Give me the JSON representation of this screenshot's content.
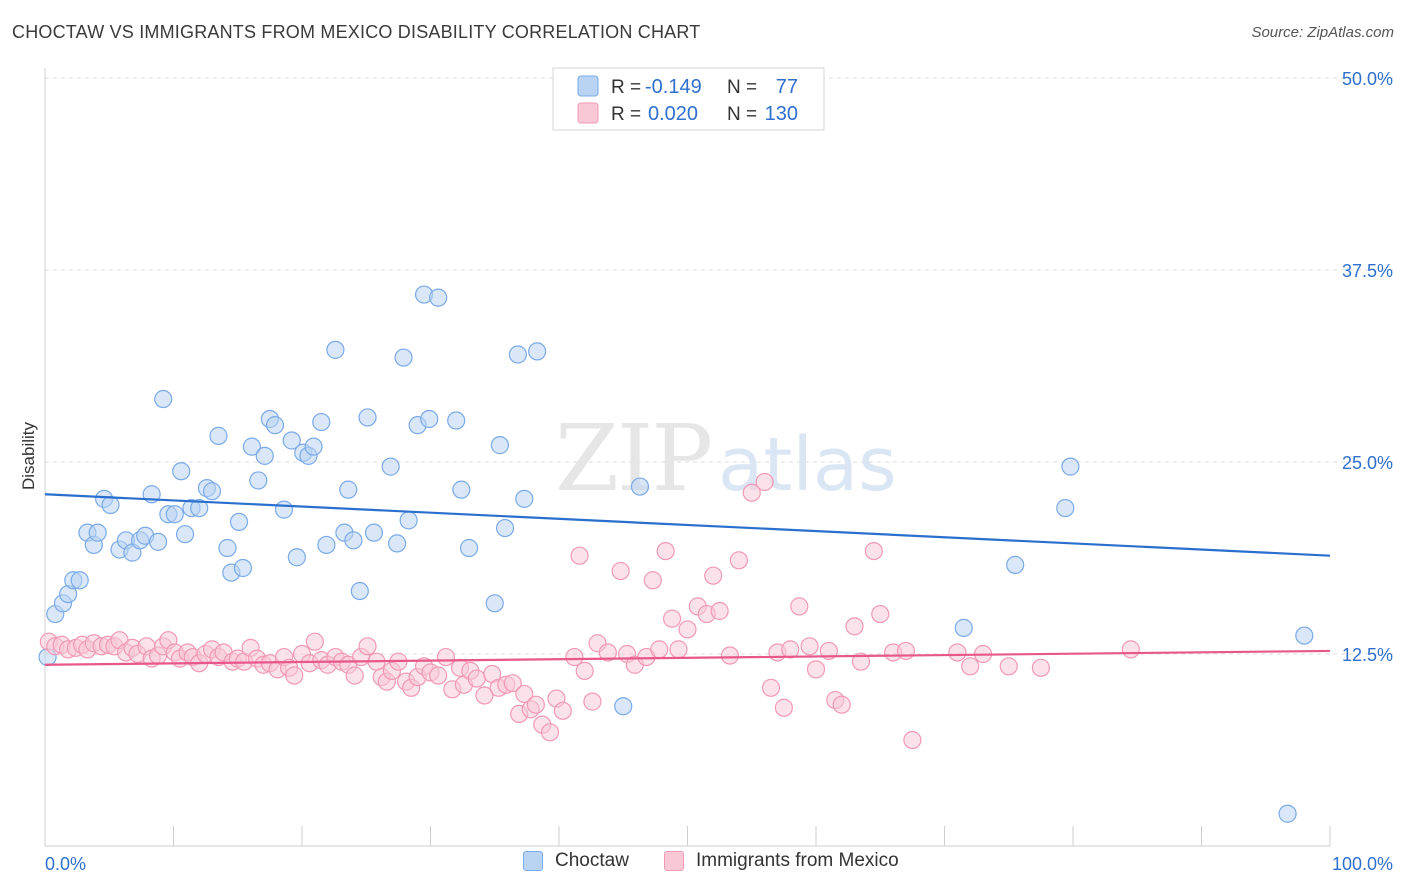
{
  "title": "CHOCTAW VS IMMIGRANTS FROM MEXICO DISABILITY CORRELATION CHART",
  "source": "Source: ZipAtlas.com",
  "watermark": {
    "zip": "ZIP",
    "atlas": "atlas"
  },
  "colors": {
    "blue": "#7aaae8",
    "blue_fill": "#b9d3f3",
    "blue_line": "#2b6fce",
    "pink": "#f199b5",
    "pink_fill": "#f8c8d7",
    "pink_line": "#e8578a",
    "value_text": "#2f6fce",
    "grid": "#dcdcdc"
  },
  "stats_legend": {
    "rows": [
      {
        "r_label": "R =",
        "r_value": "-0.149",
        "n_label": "N =",
        "n_value": "77",
        "series": "Choctaw"
      },
      {
        "r_label": "R =",
        "r_value": "0.020",
        "n_label": "N =",
        "n_value": "130",
        "series": "Immigrants from Mexico"
      }
    ]
  },
  "chart_data": {
    "type": "scatter",
    "title": "CHOCTAW VS IMMIGRANTS FROM MEXICO DISABILITY CORRELATION CHART",
    "xlabel": "",
    "ylabel": "Disability",
    "xlim": [
      0,
      100
    ],
    "ylim": [
      0,
      50
    ],
    "x_tick_labels": [
      {
        "value": 0,
        "label": "0.0%"
      },
      {
        "value": 100,
        "label": "100.0%"
      }
    ],
    "y_tick_labels": [
      {
        "value": 12.5,
        "label": "12.5%"
      },
      {
        "value": 25.0,
        "label": "25.0%"
      },
      {
        "value": 37.5,
        "label": "37.5%"
      },
      {
        "value": 50.0,
        "label": "50.0%"
      }
    ],
    "grid": true,
    "legend": "bottom-center",
    "series": [
      {
        "name": "Choctaw",
        "color": "#7aaae8",
        "trend": {
          "x": [
            0,
            100
          ],
          "y": [
            22.9,
            18.9
          ]
        },
        "points": [
          [
            0.2,
            12.3
          ],
          [
            0.8,
            15.1
          ],
          [
            1.4,
            15.8
          ],
          [
            1.8,
            16.4
          ],
          [
            2.2,
            17.3
          ],
          [
            2.7,
            17.3
          ],
          [
            3.3,
            20.4
          ],
          [
            3.8,
            19.6
          ],
          [
            4.1,
            20.4
          ],
          [
            4.6,
            22.6
          ],
          [
            5.1,
            22.2
          ],
          [
            5.8,
            19.3
          ],
          [
            6.3,
            19.9
          ],
          [
            6.8,
            19.1
          ],
          [
            7.4,
            19.9
          ],
          [
            7.8,
            20.2
          ],
          [
            8.3,
            22.9
          ],
          [
            8.8,
            19.8
          ],
          [
            9.2,
            29.1
          ],
          [
            9.6,
            21.6
          ],
          [
            10.1,
            21.6
          ],
          [
            10.6,
            24.4
          ],
          [
            10.9,
            20.3
          ],
          [
            11.4,
            22.0
          ],
          [
            12.0,
            22.0
          ],
          [
            12.6,
            23.3
          ],
          [
            13.0,
            23.1
          ],
          [
            13.5,
            26.7
          ],
          [
            14.2,
            19.4
          ],
          [
            14.5,
            17.8
          ],
          [
            15.1,
            21.1
          ],
          [
            15.4,
            18.1
          ],
          [
            16.1,
            26.0
          ],
          [
            16.6,
            23.8
          ],
          [
            17.1,
            25.4
          ],
          [
            17.5,
            27.8
          ],
          [
            17.9,
            27.4
          ],
          [
            18.6,
            21.9
          ],
          [
            19.2,
            26.4
          ],
          [
            19.6,
            18.8
          ],
          [
            20.1,
            25.6
          ],
          [
            20.5,
            25.4
          ],
          [
            20.9,
            26.0
          ],
          [
            21.5,
            27.6
          ],
          [
            21.9,
            19.6
          ],
          [
            22.6,
            32.3
          ],
          [
            23.3,
            20.4
          ],
          [
            23.6,
            23.2
          ],
          [
            24.0,
            19.9
          ],
          [
            24.5,
            16.6
          ],
          [
            25.1,
            27.9
          ],
          [
            25.6,
            20.4
          ],
          [
            26.9,
            24.7
          ],
          [
            27.4,
            19.7
          ],
          [
            27.9,
            31.8
          ],
          [
            28.3,
            21.2
          ],
          [
            29.0,
            27.4
          ],
          [
            29.5,
            35.9
          ],
          [
            29.9,
            27.8
          ],
          [
            30.6,
            35.7
          ],
          [
            32.0,
            27.7
          ],
          [
            32.4,
            23.2
          ],
          [
            33.0,
            19.4
          ],
          [
            35.0,
            15.8
          ],
          [
            35.4,
            26.1
          ],
          [
            35.8,
            20.7
          ],
          [
            36.8,
            32.0
          ],
          [
            37.3,
            22.6
          ],
          [
            38.3,
            32.2
          ],
          [
            45.0,
            9.1
          ],
          [
            46.3,
            23.4
          ],
          [
            71.5,
            14.2
          ],
          [
            75.5,
            18.3
          ],
          [
            79.4,
            22.0
          ],
          [
            79.8,
            24.7
          ],
          [
            96.7,
            2.1
          ],
          [
            98.0,
            13.7
          ]
        ]
      },
      {
        "name": "Immigrants from Mexico",
        "color": "#f199b5",
        "trend": {
          "x": [
            0,
            100
          ],
          "y": [
            11.8,
            12.7
          ]
        },
        "points": [
          [
            0.3,
            13.3
          ],
          [
            0.8,
            13.0
          ],
          [
            1.3,
            13.1
          ],
          [
            1.8,
            12.8
          ],
          [
            2.4,
            12.9
          ],
          [
            2.9,
            13.1
          ],
          [
            3.3,
            12.8
          ],
          [
            3.8,
            13.2
          ],
          [
            4.4,
            13.0
          ],
          [
            4.9,
            13.1
          ],
          [
            5.4,
            13.0
          ],
          [
            5.8,
            13.4
          ],
          [
            6.3,
            12.6
          ],
          [
            6.8,
            12.9
          ],
          [
            7.2,
            12.5
          ],
          [
            7.9,
            13.0
          ],
          [
            8.3,
            12.2
          ],
          [
            8.8,
            12.4
          ],
          [
            9.2,
            13.0
          ],
          [
            9.6,
            13.4
          ],
          [
            10.1,
            12.6
          ],
          [
            10.5,
            12.2
          ],
          [
            11.1,
            12.6
          ],
          [
            11.5,
            12.3
          ],
          [
            12.0,
            11.9
          ],
          [
            12.5,
            12.5
          ],
          [
            13.0,
            12.8
          ],
          [
            13.5,
            12.3
          ],
          [
            13.9,
            12.6
          ],
          [
            14.6,
            12.0
          ],
          [
            15.0,
            12.2
          ],
          [
            15.5,
            12.0
          ],
          [
            16.0,
            12.9
          ],
          [
            16.5,
            12.2
          ],
          [
            17.0,
            11.8
          ],
          [
            17.5,
            11.9
          ],
          [
            18.1,
            11.5
          ],
          [
            18.6,
            12.3
          ],
          [
            19.0,
            11.6
          ],
          [
            19.4,
            11.1
          ],
          [
            20.0,
            12.5
          ],
          [
            20.6,
            11.9
          ],
          [
            21.0,
            13.3
          ],
          [
            21.5,
            12.1
          ],
          [
            22.0,
            11.8
          ],
          [
            22.6,
            12.3
          ],
          [
            23.1,
            12.0
          ],
          [
            23.6,
            11.8
          ],
          [
            24.1,
            11.1
          ],
          [
            24.6,
            12.3
          ],
          [
            25.1,
            13.0
          ],
          [
            25.8,
            12.0
          ],
          [
            26.2,
            11.0
          ],
          [
            26.6,
            10.7
          ],
          [
            27.0,
            11.4
          ],
          [
            27.5,
            12.0
          ],
          [
            28.1,
            10.7
          ],
          [
            28.5,
            10.3
          ],
          [
            29.0,
            11.0
          ],
          [
            29.5,
            11.7
          ],
          [
            30.0,
            11.3
          ],
          [
            30.6,
            11.1
          ],
          [
            31.2,
            12.3
          ],
          [
            31.7,
            10.2
          ],
          [
            32.3,
            11.6
          ],
          [
            32.6,
            10.5
          ],
          [
            33.1,
            11.4
          ],
          [
            33.6,
            10.9
          ],
          [
            34.2,
            9.8
          ],
          [
            34.8,
            11.2
          ],
          [
            35.3,
            10.3
          ],
          [
            35.9,
            10.5
          ],
          [
            36.4,
            10.6
          ],
          [
            36.9,
            8.6
          ],
          [
            37.3,
            9.9
          ],
          [
            37.8,
            8.9
          ],
          [
            38.2,
            9.2
          ],
          [
            38.7,
            7.9
          ],
          [
            39.3,
            7.4
          ],
          [
            39.8,
            9.6
          ],
          [
            40.3,
            8.8
          ],
          [
            41.2,
            12.3
          ],
          [
            41.6,
            18.9
          ],
          [
            42.0,
            11.4
          ],
          [
            42.6,
            9.4
          ],
          [
            43.0,
            13.2
          ],
          [
            43.8,
            12.6
          ],
          [
            44.8,
            17.9
          ],
          [
            45.3,
            12.5
          ],
          [
            45.9,
            11.8
          ],
          [
            46.8,
            12.3
          ],
          [
            47.3,
            17.3
          ],
          [
            47.8,
            12.8
          ],
          [
            48.3,
            19.2
          ],
          [
            48.8,
            14.8
          ],
          [
            49.3,
            12.8
          ],
          [
            50.0,
            14.1
          ],
          [
            50.8,
            15.6
          ],
          [
            51.5,
            15.1
          ],
          [
            52.0,
            17.6
          ],
          [
            52.5,
            15.3
          ],
          [
            53.3,
            12.4
          ],
          [
            54.0,
            18.6
          ],
          [
            55.0,
            23.0
          ],
          [
            56.0,
            23.7
          ],
          [
            56.5,
            10.3
          ],
          [
            57.0,
            12.6
          ],
          [
            57.5,
            9.0
          ],
          [
            58.0,
            12.8
          ],
          [
            58.7,
            15.6
          ],
          [
            59.5,
            13.0
          ],
          [
            60.0,
            11.5
          ],
          [
            61.0,
            12.7
          ],
          [
            61.5,
            9.5
          ],
          [
            62.0,
            9.2
          ],
          [
            63.0,
            14.3
          ],
          [
            63.5,
            12.0
          ],
          [
            64.5,
            19.2
          ],
          [
            65.0,
            15.1
          ],
          [
            66.0,
            12.6
          ],
          [
            67.0,
            12.7
          ],
          [
            67.5,
            6.9
          ],
          [
            71.0,
            12.6
          ],
          [
            72.0,
            11.7
          ],
          [
            73.0,
            12.5
          ],
          [
            75.0,
            11.7
          ],
          [
            77.5,
            11.6
          ],
          [
            84.5,
            12.8
          ]
        ]
      }
    ]
  },
  "bottom_legend": {
    "items": [
      {
        "label": "Choctaw"
      },
      {
        "label": "Immigrants from Mexico"
      }
    ]
  }
}
